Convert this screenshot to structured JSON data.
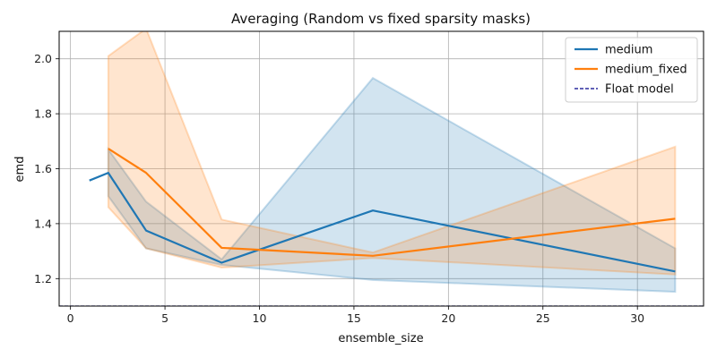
{
  "chart_data": {
    "type": "line",
    "title": "Averaging (Random vs fixed sparsity masks)",
    "xlabel": "ensemble_size",
    "ylabel": "emd",
    "xlim": [
      -0.6,
      33.5
    ],
    "ylim": [
      1.1,
      2.1
    ],
    "xticks": [
      0,
      5,
      10,
      15,
      20,
      25,
      30
    ],
    "yticks": [
      1.2,
      1.4,
      1.6,
      1.8,
      2.0
    ],
    "grid": true,
    "legend_position": "top-right",
    "series": [
      {
        "name": "medium",
        "color": "#1f77b4",
        "style": "solid",
        "x": [
          1,
          2,
          4,
          8,
          16,
          32
        ],
        "y": [
          1.557,
          1.585,
          1.375,
          1.258,
          1.448,
          1.226
        ],
        "band_upper": [
          null,
          1.67,
          1.48,
          1.27,
          1.93,
          1.31
        ],
        "band_lower": [
          null,
          1.5,
          1.31,
          1.25,
          1.195,
          1.152
        ]
      },
      {
        "name": "medium_fixed",
        "color": "#ff7f0e",
        "style": "solid",
        "x": [
          2,
          4,
          8,
          16,
          32
        ],
        "y": [
          1.673,
          1.585,
          1.312,
          1.283,
          1.418
        ],
        "band_upper": [
          2.01,
          2.11,
          1.415,
          1.295,
          1.68
        ],
        "band_lower": [
          1.46,
          1.31,
          1.24,
          1.275,
          1.215
        ]
      },
      {
        "name": "Float model",
        "color": "#00008b",
        "style": "dashed",
        "x": [
          -0.6,
          33.5
        ],
        "y": [
          1.1,
          1.1
        ]
      }
    ]
  }
}
